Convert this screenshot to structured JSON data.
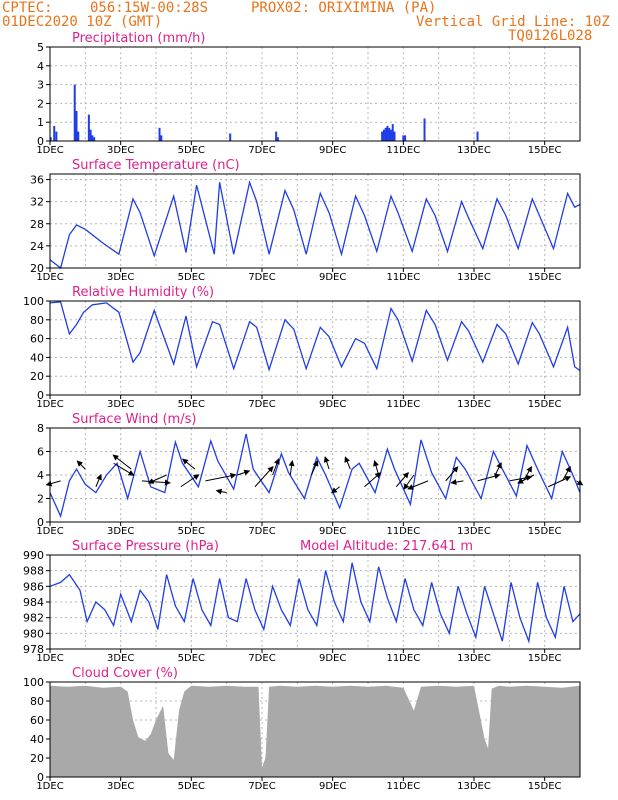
{
  "header": {
    "source": "CPTEC:",
    "location": "056:15W-00:28S",
    "station": "PROX02: ORIXIMINA (PA)",
    "datetime": "01DEC2020 10Z (GMT)",
    "grid_note": "Vertical Grid Line: 10Z",
    "model": "TQ0126L028"
  },
  "colors": {
    "header": "#e8741a",
    "panel_title": "#e0208c",
    "line": "#1f3de8",
    "bars": "#1f3de8",
    "cloud": "#a9a9a9",
    "grid": "#b8b8b8"
  },
  "x_axis": {
    "range_days": [
      0,
      15
    ],
    "tick_labels": [
      "1DEC",
      "3DEC",
      "5DEC",
      "7DEC",
      "9DEC",
      "11DEC",
      "13DEC",
      "15DEC"
    ],
    "tick_days": [
      0,
      2,
      4,
      6,
      8,
      10,
      12,
      14
    ],
    "grid_days": [
      0,
      1,
      2,
      3,
      4,
      5,
      6,
      7,
      8,
      9,
      10,
      11,
      12,
      13,
      14,
      15
    ]
  },
  "chart_data": [
    {
      "id": "precip",
      "type": "bar",
      "title": "Precipitation (mm/h)",
      "ylim": [
        0,
        5
      ],
      "yticks": [
        0,
        1,
        2,
        3,
        4,
        5
      ],
      "x": [
        0.02,
        0.12,
        0.18,
        0.7,
        0.75,
        0.8,
        1.1,
        1.15,
        1.2,
        1.25,
        3.1,
        3.15,
        5.1,
        6.4,
        6.45,
        9.4,
        9.45,
        9.5,
        9.55,
        9.6,
        9.65,
        9.7,
        9.75,
        10.0,
        10.05,
        10.6,
        12.1
      ],
      "values": [
        0.2,
        0.8,
        0.5,
        3.0,
        1.6,
        0.5,
        1.4,
        0.6,
        0.3,
        0.2,
        0.7,
        0.3,
        0.4,
        0.5,
        0.2,
        0.5,
        0.6,
        0.7,
        0.8,
        0.7,
        0.6,
        0.9,
        0.5,
        0.3,
        0.3,
        1.2,
        0.5
      ]
    },
    {
      "id": "temp",
      "type": "line",
      "title": "Surface Temperature (nC)",
      "ylim": [
        20,
        37
      ],
      "yticks": [
        20,
        24,
        28,
        32,
        36
      ],
      "x": [
        0,
        0.3,
        0.55,
        0.75,
        1.0,
        1.5,
        1.95,
        2.35,
        2.55,
        2.95,
        3.5,
        3.85,
        4.15,
        4.65,
        4.8,
        5.2,
        5.65,
        5.85,
        6.2,
        6.65,
        6.9,
        7.25,
        7.65,
        7.9,
        8.25,
        8.65,
        8.9,
        9.25,
        9.65,
        9.85,
        10.25,
        10.65,
        10.9,
        11.25,
        11.65,
        11.85,
        12.25,
        12.65,
        12.9,
        13.25,
        13.65,
        13.85,
        14.25,
        14.65,
        14.85,
        15.0
      ],
      "y": [
        21.5,
        20.0,
        26.0,
        27.8,
        27.0,
        24.5,
        22.5,
        32.5,
        30.0,
        22.2,
        33.0,
        22.8,
        35.0,
        22.5,
        35.5,
        22.5,
        35.5,
        32.0,
        22.5,
        34.0,
        30.5,
        22.5,
        33.5,
        30.0,
        22.5,
        33.0,
        29.5,
        23.0,
        33.0,
        30.0,
        23.0,
        32.5,
        29.5,
        23.0,
        32.0,
        29.0,
        23.5,
        32.5,
        29.5,
        23.5,
        32.5,
        29.5,
        23.5,
        33.5,
        31.0,
        31.5
      ]
    },
    {
      "id": "rh",
      "type": "line",
      "title": "Relative Humidity (%)",
      "ylim": [
        0,
        100
      ],
      "yticks": [
        0,
        20,
        40,
        60,
        80,
        100
      ],
      "x": [
        0,
        0.3,
        0.55,
        0.75,
        0.95,
        1.2,
        1.6,
        1.95,
        2.35,
        2.55,
        2.95,
        3.5,
        3.85,
        4.15,
        4.6,
        4.8,
        5.2,
        5.65,
        5.85,
        6.2,
        6.65,
        6.9,
        7.25,
        7.65,
        7.9,
        8.25,
        8.65,
        8.9,
        9.25,
        9.65,
        9.85,
        10.25,
        10.65,
        10.9,
        11.25,
        11.65,
        11.85,
        12.25,
        12.65,
        12.9,
        13.25,
        13.65,
        13.85,
        14.25,
        14.65,
        14.85,
        15.0
      ],
      "y": [
        98,
        99,
        65,
        75,
        88,
        96,
        98,
        88,
        35,
        45,
        90,
        33,
        84,
        30,
        78,
        75,
        28,
        78,
        72,
        27,
        80,
        70,
        28,
        72,
        62,
        30,
        60,
        55,
        28,
        92,
        80,
        36,
        90,
        75,
        37,
        78,
        68,
        35,
        75,
        65,
        33,
        77,
        65,
        30,
        72,
        30,
        26
      ]
    },
    {
      "id": "wind",
      "type": "line",
      "title": "Surface Wind (m/s)",
      "ylim": [
        0,
        8
      ],
      "yticks": [
        0,
        2,
        4,
        6,
        8
      ],
      "x": [
        0,
        0.3,
        0.55,
        0.75,
        1.0,
        1.3,
        1.6,
        1.9,
        2.2,
        2.55,
        2.85,
        3.25,
        3.55,
        3.75,
        4.2,
        4.55,
        4.75,
        5.2,
        5.55,
        5.75,
        6.2,
        6.55,
        6.75,
        7.2,
        7.55,
        7.8,
        8.2,
        8.55,
        8.75,
        9.2,
        9.55,
        9.75,
        10.2,
        10.5,
        10.8,
        11.2,
        11.5,
        11.75,
        12.2,
        12.55,
        12.75,
        13.2,
        13.5,
        13.8,
        14.2,
        14.5,
        14.8,
        15.0
      ],
      "y": [
        2.5,
        0.5,
        3.5,
        4.5,
        3.2,
        2.5,
        4.0,
        5.0,
        2.0,
        6.0,
        3.0,
        2.5,
        6.8,
        5.0,
        3.0,
        6.9,
        5.2,
        2.8,
        7.5,
        4.5,
        2.5,
        5.8,
        4.2,
        2.0,
        5.5,
        4.0,
        1.2,
        4.5,
        5.0,
        2.5,
        6.2,
        4.5,
        1.5,
        7.0,
        4.2,
        2.0,
        5.5,
        4.5,
        2.0,
        6.0,
        4.8,
        2.2,
        6.5,
        4.5,
        2.0,
        6.0,
        4.0,
        2.5
      ]
    },
    {
      "id": "pres",
      "type": "line",
      "title": "Surface Pressure (hPa)",
      "annotation": "Model Altitude: 217.641 m",
      "ylim": [
        978,
        990
      ],
      "yticks": [
        978,
        980,
        982,
        984,
        986,
        988,
        990
      ],
      "x": [
        0,
        0.3,
        0.55,
        0.85,
        1.05,
        1.3,
        1.55,
        1.8,
        2.0,
        2.3,
        2.55,
        2.8,
        3.05,
        3.3,
        3.55,
        3.8,
        4.05,
        4.3,
        4.55,
        4.8,
        5.05,
        5.3,
        5.55,
        5.8,
        6.05,
        6.3,
        6.55,
        6.8,
        7.05,
        7.3,
        7.55,
        7.8,
        8.05,
        8.3,
        8.55,
        8.8,
        9.05,
        9.3,
        9.55,
        9.8,
        10.05,
        10.3,
        10.55,
        10.8,
        11.05,
        11.3,
        11.55,
        11.8,
        12.05,
        12.3,
        12.55,
        12.8,
        13.05,
        13.3,
        13.55,
        13.8,
        14.05,
        14.3,
        14.55,
        14.8,
        15.0
      ],
      "y": [
        986,
        986.5,
        987.5,
        985.5,
        981.5,
        984.0,
        983.0,
        981.0,
        985.0,
        981.5,
        985.5,
        984.0,
        980.5,
        987.5,
        983.5,
        981.5,
        987.0,
        983.0,
        981.0,
        987.0,
        982.0,
        981.5,
        987.0,
        983.0,
        980.5,
        986.0,
        983.0,
        981.0,
        987.0,
        983.0,
        981.0,
        988.0,
        984.0,
        981.5,
        989.0,
        984.0,
        981.5,
        988.5,
        984.5,
        981.5,
        987.0,
        983.0,
        981.0,
        986.5,
        982.5,
        980.0,
        986.0,
        982.5,
        979.5,
        986.0,
        982.5,
        979.0,
        986.5,
        982.0,
        979.0,
        986.5,
        982.0,
        979.5,
        986.0,
        981.5,
        982.5
      ]
    },
    {
      "id": "cloud",
      "type": "area",
      "title": "Cloud Cover (%)",
      "ylim": [
        0,
        100
      ],
      "yticks": [
        0,
        20,
        40,
        60,
        80,
        100
      ],
      "x": [
        0,
        0.5,
        1.0,
        1.5,
        2.0,
        2.2,
        2.35,
        2.5,
        2.7,
        2.85,
        3.0,
        3.2,
        3.35,
        3.5,
        3.65,
        3.8,
        4.0,
        4.5,
        5.0,
        5.5,
        5.9,
        6.0,
        6.1,
        6.2,
        6.5,
        7.0,
        7.5,
        8.0,
        8.5,
        9.0,
        9.5,
        10.0,
        10.3,
        10.5,
        11.0,
        11.5,
        12.0,
        12.3,
        12.4,
        12.5,
        12.7,
        13.0,
        13.5,
        14.0,
        14.5,
        15.0
      ],
      "y": [
        96,
        95,
        96,
        94,
        95,
        90,
        60,
        42,
        38,
        45,
        60,
        75,
        25,
        18,
        70,
        90,
        96,
        95,
        96,
        95,
        95,
        10,
        20,
        95,
        96,
        95,
        96,
        95,
        96,
        95,
        96,
        94,
        70,
        95,
        96,
        95,
        96,
        40,
        30,
        93,
        96,
        95,
        96,
        95,
        94,
        96
      ]
    }
  ],
  "wind_vectors": [
    {
      "day": 0.3,
      "level": 3.5,
      "dx": -14,
      "dy": 4
    },
    {
      "day": 1.0,
      "level": 4.5,
      "dx": -8,
      "dy": -8
    },
    {
      "day": 1.3,
      "level": 3.0,
      "dx": 5,
      "dy": -12
    },
    {
      "day": 1.8,
      "level": 5.0,
      "dx": 20,
      "dy": 12
    },
    {
      "day": 2.3,
      "level": 4.5,
      "dx": -18,
      "dy": -14
    },
    {
      "day": 2.6,
      "level": 3.5,
      "dx": 28,
      "dy": 2
    },
    {
      "day": 3.3,
      "level": 4.0,
      "dx": -18,
      "dy": 8
    },
    {
      "day": 3.7,
      "level": 3.0,
      "dx": 18,
      "dy": -12
    },
    {
      "day": 4.1,
      "level": 4.5,
      "dx": -12,
      "dy": -10
    },
    {
      "day": 4.4,
      "level": 3.5,
      "dx": 30,
      "dy": -6
    },
    {
      "day": 5.0,
      "level": 2.5,
      "dx": -10,
      "dy": -2
    },
    {
      "day": 5.3,
      "level": 4.0,
      "dx": 12,
      "dy": -4
    },
    {
      "day": 5.8,
      "level": 3.0,
      "dx": 18,
      "dy": -20
    },
    {
      "day": 6.3,
      "level": 4.0,
      "dx": 6,
      "dy": -16
    },
    {
      "day": 6.8,
      "level": 4.0,
      "dx": 2,
      "dy": -14
    },
    {
      "day": 7.4,
      "level": 4.0,
      "dx": 6,
      "dy": -14
    },
    {
      "day": 7.9,
      "level": 4.5,
      "dx": -4,
      "dy": -12
    },
    {
      "day": 8.2,
      "level": 3.0,
      "dx": -8,
      "dy": 6
    },
    {
      "day": 8.5,
      "level": 4.5,
      "dx": -5,
      "dy": -12
    },
    {
      "day": 8.9,
      "level": 3.0,
      "dx": 16,
      "dy": -14
    },
    {
      "day": 9.3,
      "level": 4.0,
      "dx": -4,
      "dy": -14
    },
    {
      "day": 9.8,
      "level": 3.0,
      "dx": 12,
      "dy": -14
    },
    {
      "day": 10.3,
      "level": 4.0,
      "dx": -10,
      "dy": 14
    },
    {
      "day": 10.7,
      "level": 3.5,
      "dx": -20,
      "dy": 8
    },
    {
      "day": 11.2,
      "level": 3.5,
      "dx": 12,
      "dy": -14
    },
    {
      "day": 11.7,
      "level": 3.5,
      "dx": -12,
      "dy": 2
    },
    {
      "day": 12.1,
      "level": 3.5,
      "dx": 22,
      "dy": -6
    },
    {
      "day": 12.6,
      "level": 4.0,
      "dx": 6,
      "dy": -12
    },
    {
      "day": 13.0,
      "level": 3.5,
      "dx": 22,
      "dy": -4
    },
    {
      "day": 13.4,
      "level": 3.5,
      "dx": 8,
      "dy": -14
    },
    {
      "day": 13.7,
      "level": 4.0,
      "dx": -16,
      "dy": 8
    },
    {
      "day": 14.1,
      "level": 3.0,
      "dx": 22,
      "dy": -10
    },
    {
      "day": 14.5,
      "level": 3.5,
      "dx": 8,
      "dy": -14
    },
    {
      "day": 14.9,
      "level": 3.5,
      "dx": 6,
      "dy": 4
    }
  ]
}
